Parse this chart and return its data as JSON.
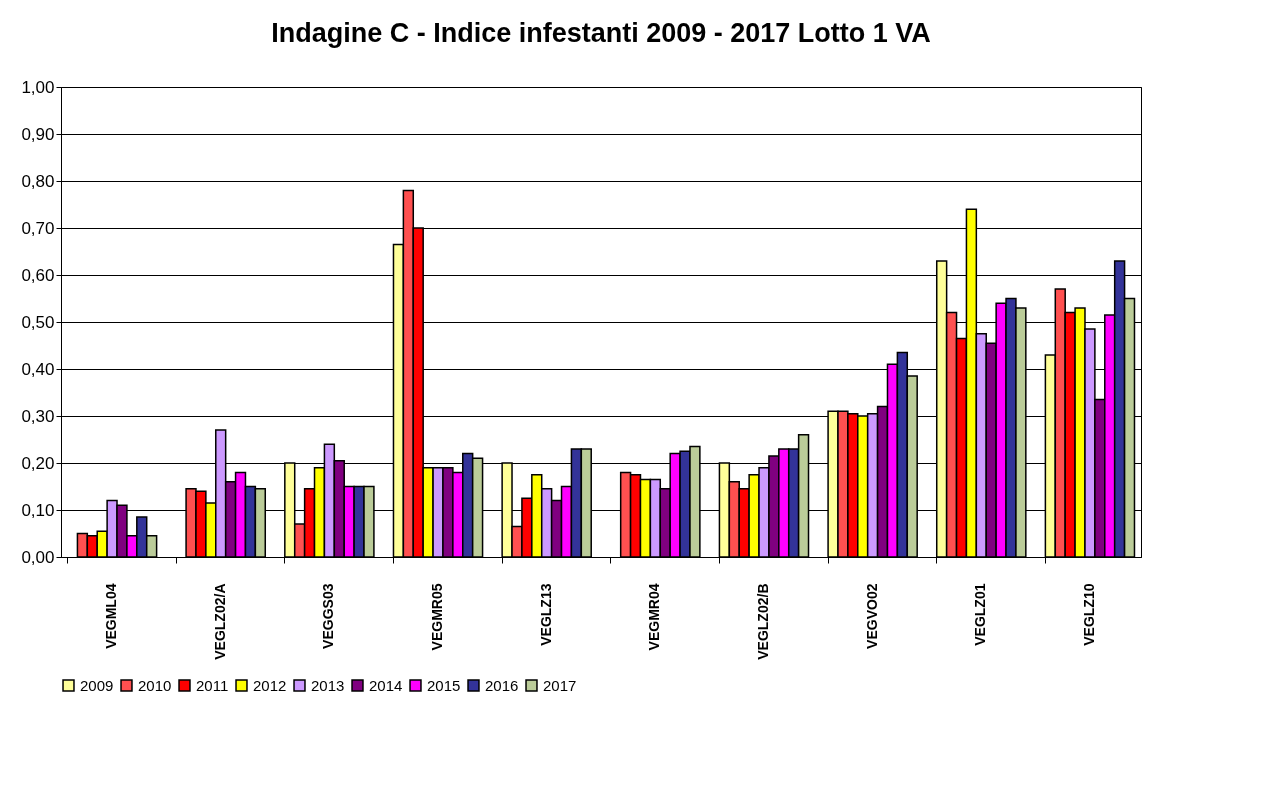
{
  "chart_data": {
    "type": "bar",
    "title": "Indagine C - Indice infestanti 2009 - 2017 Lotto 1 VA",
    "categories": [
      "VEGML04",
      "VEGLZ02/A",
      "VEGGS03",
      "VEGMR05",
      "VEGLZ13",
      "VEGMR04",
      "VEGLZ02/B",
      "VEGVO02",
      "VEGLZ01",
      "VEGLZ10"
    ],
    "series": [
      {
        "name": "2009",
        "color": "#ffff99",
        "values": [
          null,
          null,
          0.2,
          0.665,
          0.2,
          null,
          0.2,
          0.31,
          0.63,
          0.43
        ]
      },
      {
        "name": "2010",
        "color": "#ff5050",
        "values": [
          0.05,
          0.145,
          0.07,
          0.78,
          0.065,
          0.18,
          0.16,
          0.31,
          0.52,
          0.57
        ]
      },
      {
        "name": "2011",
        "color": "#ff0000",
        "values": [
          0.045,
          0.14,
          0.145,
          0.7,
          0.125,
          0.175,
          0.145,
          0.305,
          0.465,
          0.52
        ]
      },
      {
        "name": "2012",
        "color": "#ffff00",
        "values": [
          0.055,
          0.115,
          0.19,
          0.19,
          0.175,
          0.165,
          0.175,
          0.3,
          0.74,
          0.53
        ]
      },
      {
        "name": "2013",
        "color": "#cc99ff",
        "values": [
          0.12,
          0.27,
          0.24,
          0.19,
          0.145,
          0.165,
          0.19,
          0.305,
          0.475,
          0.485
        ]
      },
      {
        "name": "2014",
        "color": "#800080",
        "values": [
          0.11,
          0.16,
          0.205,
          0.19,
          0.12,
          0.145,
          0.215,
          0.32,
          0.455,
          0.335
        ]
      },
      {
        "name": "2015",
        "color": "#ff00ff",
        "values": [
          0.045,
          0.18,
          0.15,
          0.18,
          0.15,
          0.22,
          0.23,
          0.41,
          0.54,
          0.515
        ]
      },
      {
        "name": "2016",
        "color": "#333399",
        "values": [
          0.085,
          0.15,
          0.15,
          0.22,
          0.23,
          0.225,
          0.23,
          0.435,
          0.55,
          0.63
        ]
      },
      {
        "name": "2017",
        "color": "#bbcc99",
        "values": [
          0.045,
          0.145,
          0.15,
          0.21,
          0.23,
          0.235,
          0.26,
          0.385,
          0.53,
          0.55
        ]
      }
    ],
    "ylim": [
      0,
      1
    ],
    "yticks": [
      {
        "value": 0,
        "label": "0,00"
      },
      {
        "value": 0.1,
        "label": "0,10"
      },
      {
        "value": 0.2,
        "label": "0,20"
      },
      {
        "value": 0.3,
        "label": "0,30"
      },
      {
        "value": 0.4,
        "label": "0,40"
      },
      {
        "value": 0.5,
        "label": "0,50"
      },
      {
        "value": 0.6,
        "label": "0,60"
      },
      {
        "value": 0.7,
        "label": "0,70"
      },
      {
        "value": 0.8,
        "label": "0,80"
      },
      {
        "value": 0.9,
        "label": "0,90"
      },
      {
        "value": 1,
        "label": "1,00"
      }
    ],
    "grid": "y",
    "legend": "bottom"
  }
}
